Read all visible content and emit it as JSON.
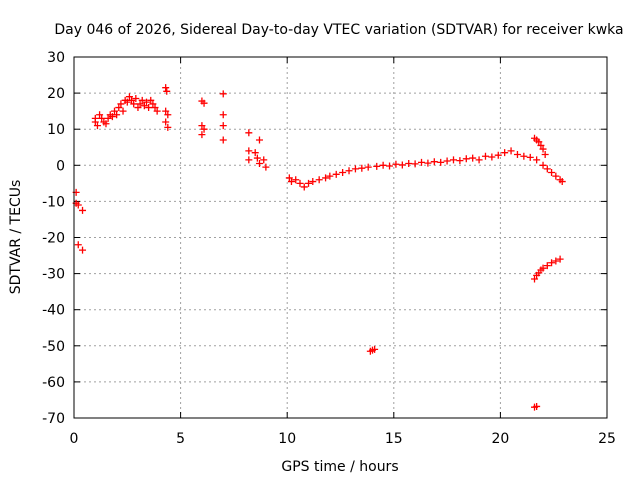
{
  "chart_data": {
    "type": "scatter",
    "title": "Day 046 of 2026, Sidereal Day-to-day VTEC variation (SDTVAR) for receiver kwka",
    "xlabel": "GPS time / hours",
    "ylabel": "SDTVAR / TECUs",
    "xlim": [
      0,
      25
    ],
    "ylim": [
      -70,
      30
    ],
    "xticks": [
      0,
      5,
      10,
      15,
      20,
      25
    ],
    "yticks": [
      -70,
      -60,
      -50,
      -40,
      -30,
      -20,
      -10,
      0,
      10,
      20,
      30
    ],
    "grid": true,
    "marker": "+",
    "color": "#ff0000",
    "series": [
      {
        "name": "SDTVAR",
        "points": [
          [
            0.1,
            -7.5
          ],
          [
            0.1,
            -10.5
          ],
          [
            0.2,
            -11
          ],
          [
            0.4,
            -12.5
          ],
          [
            0.2,
            -22
          ],
          [
            0.4,
            -23.5
          ],
          [
            1.0,
            13
          ],
          [
            1.0,
            12
          ],
          [
            1.1,
            11
          ],
          [
            1.2,
            14
          ],
          [
            1.3,
            13
          ],
          [
            1.4,
            12
          ],
          [
            1.5,
            11.5
          ],
          [
            1.6,
            13
          ],
          [
            1.7,
            14
          ],
          [
            1.8,
            13.5
          ],
          [
            1.9,
            15
          ],
          [
            2.0,
            14
          ],
          [
            2.1,
            16
          ],
          [
            2.2,
            17
          ],
          [
            2.3,
            15
          ],
          [
            2.4,
            18
          ],
          [
            2.5,
            17.5
          ],
          [
            2.6,
            19
          ],
          [
            2.7,
            18
          ],
          [
            2.8,
            17
          ],
          [
            2.9,
            18.5
          ],
          [
            3.0,
            16
          ],
          [
            3.1,
            17
          ],
          [
            3.2,
            18
          ],
          [
            3.3,
            16.5
          ],
          [
            3.4,
            17.5
          ],
          [
            3.5,
            16
          ],
          [
            3.6,
            18
          ],
          [
            3.7,
            17
          ],
          [
            3.8,
            16
          ],
          [
            3.9,
            15
          ],
          [
            4.3,
            21.5
          ],
          [
            4.35,
            20.5
          ],
          [
            4.3,
            15
          ],
          [
            4.4,
            14
          ],
          [
            4.3,
            12
          ],
          [
            4.4,
            10.5
          ],
          [
            6.0,
            17.8
          ],
          [
            6.1,
            17.2
          ],
          [
            6.0,
            11
          ],
          [
            6.1,
            10
          ],
          [
            6.0,
            8.5
          ],
          [
            7.0,
            19.8
          ],
          [
            7.0,
            14
          ],
          [
            7.0,
            11
          ],
          [
            7.0,
            7
          ],
          [
            8.2,
            9
          ],
          [
            8.2,
            4
          ],
          [
            8.2,
            1.5
          ],
          [
            8.5,
            3.5
          ],
          [
            8.6,
            2
          ],
          [
            8.7,
            7
          ],
          [
            8.7,
            0.5
          ],
          [
            8.9,
            1.5
          ],
          [
            9.0,
            -0.5
          ],
          [
            10.1,
            -3.5
          ],
          [
            10.2,
            -4.5
          ],
          [
            10.4,
            -4
          ],
          [
            10.6,
            -5
          ],
          [
            10.8,
            -6
          ],
          [
            11.0,
            -5
          ],
          [
            11.2,
            -4.5
          ],
          [
            11.5,
            -4
          ],
          [
            11.8,
            -3.5
          ],
          [
            12.0,
            -3
          ],
          [
            12.3,
            -2.5
          ],
          [
            12.6,
            -2
          ],
          [
            12.9,
            -1.5
          ],
          [
            13.2,
            -1
          ],
          [
            13.5,
            -0.8
          ],
          [
            13.8,
            -0.5
          ],
          [
            14.0,
            -51.2
          ],
          [
            13.9,
            -51.5
          ],
          [
            14.1,
            -51
          ],
          [
            14.2,
            -0.3
          ],
          [
            14.5,
            0
          ],
          [
            14.8,
            -0.2
          ],
          [
            15.1,
            0.3
          ],
          [
            15.4,
            0.1
          ],
          [
            15.7,
            0.5
          ],
          [
            16.0,
            0.4
          ],
          [
            16.3,
            0.8
          ],
          [
            16.6,
            0.6
          ],
          [
            16.9,
            1
          ],
          [
            17.2,
            0.8
          ],
          [
            17.5,
            1.2
          ],
          [
            17.8,
            1.5
          ],
          [
            18.1,
            1.3
          ],
          [
            18.4,
            1.8
          ],
          [
            18.7,
            2
          ],
          [
            19.0,
            1.5
          ],
          [
            19.3,
            2.5
          ],
          [
            19.6,
            2.3
          ],
          [
            19.9,
            2.8
          ],
          [
            20.2,
            3.5
          ],
          [
            20.5,
            4
          ],
          [
            20.8,
            3
          ],
          [
            21.1,
            2.5
          ],
          [
            21.4,
            2.2
          ],
          [
            21.7,
            1.5
          ],
          [
            21.6,
            7.5
          ],
          [
            21.7,
            7
          ],
          [
            21.8,
            6.5
          ],
          [
            21.9,
            5.5
          ],
          [
            22.0,
            4.5
          ],
          [
            22.1,
            3
          ],
          [
            22.0,
            0
          ],
          [
            22.2,
            -1
          ],
          [
            22.4,
            -2
          ],
          [
            22.6,
            -3
          ],
          [
            22.8,
            -4
          ],
          [
            22.9,
            -4.5
          ],
          [
            21.6,
            -31.5
          ],
          [
            21.7,
            -30.5
          ],
          [
            21.8,
            -29.8
          ],
          [
            21.9,
            -29
          ],
          [
            22.0,
            -28.5
          ],
          [
            22.2,
            -27.8
          ],
          [
            22.4,
            -27
          ],
          [
            22.6,
            -26.5
          ],
          [
            22.8,
            -26
          ],
          [
            21.6,
            -67
          ],
          [
            21.7,
            -66.8
          ]
        ]
      }
    ]
  }
}
